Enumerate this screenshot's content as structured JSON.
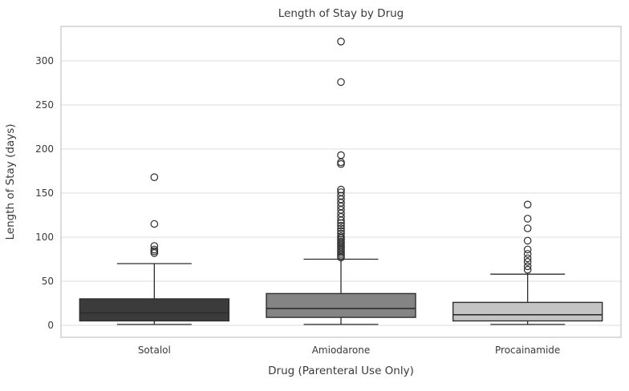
{
  "title": "Length of Stay by Drug",
  "chart_data": {
    "type": "box",
    "title": "Length of Stay by Drug",
    "xlabel": "Drug (Parenteral Use Only)",
    "ylabel": "Length of Stay (days)",
    "categories": [
      "Sotalol",
      "Amiodarone",
      "Procainamide"
    ],
    "y_ticks": [
      0,
      50,
      100,
      150,
      200,
      250,
      300
    ],
    "ylim": [
      -14,
      340
    ],
    "grid": "horizontal-only",
    "legend": "none",
    "colors": {
      "grid_line": "#dddddd",
      "plot_border": "#cccccc",
      "box_edge": "#2d2d2d",
      "text": "#3a3a3a",
      "background": "#ffffff"
    },
    "series": [
      {
        "name": "Sotalol",
        "fill_color": "#3b3b3b",
        "whisker_low": 1,
        "q1": 5,
        "median": 14,
        "q3": 30,
        "whisker_high": 70,
        "outliers": [
          82,
          84,
          86,
          90,
          115,
          168
        ]
      },
      {
        "name": "Amiodarone",
        "fill_color": "#848484",
        "whisker_low": 1,
        "q1": 9,
        "median": 19,
        "q3": 36,
        "whisker_high": 75,
        "outliers": [
          77,
          79,
          81,
          83,
          85,
          87,
          89,
          91,
          93,
          95,
          97,
          99,
          101,
          104,
          107,
          110,
          113,
          116,
          119,
          123,
          127,
          131,
          135,
          139,
          143,
          147,
          151,
          154,
          183,
          185,
          193,
          276,
          322
        ]
      },
      {
        "name": "Procainamide",
        "fill_color": "#c4c4c4",
        "whisker_low": 1,
        "q1": 5,
        "median": 12,
        "q3": 26,
        "whisker_high": 58,
        "outliers": [
          63,
          67,
          72,
          76,
          81,
          86,
          96,
          110,
          121,
          137
        ]
      }
    ]
  }
}
